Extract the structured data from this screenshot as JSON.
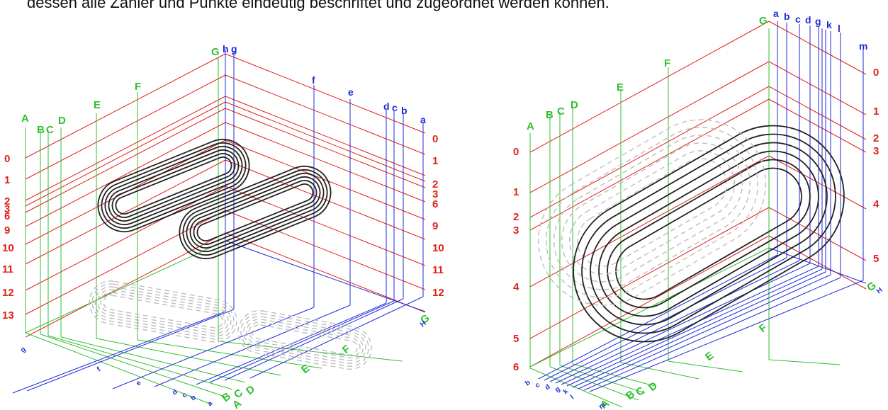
{
  "caption": "dessen alle Zahler und Punkte eindeutig beschriftet und zugeordnet werden können.",
  "colors": {
    "red": "#e0201b",
    "green": "#2fbf2f",
    "blue": "#1f2bd6",
    "coil": "#222222",
    "hidden": "#bdbdbd"
  },
  "left_diagram": {
    "red_labels": [
      "0",
      "1",
      "2",
      "3",
      "6",
      "9",
      "10",
      "11",
      "12",
      "13"
    ],
    "red_labels_right": [
      "0",
      "1",
      "2",
      "3",
      "6",
      "9",
      "10",
      "11",
      "12"
    ],
    "green_labels": [
      "A",
      "B",
      "C",
      "D",
      "E",
      "F",
      "G"
    ],
    "green_labels_bottom": [
      "A",
      "B",
      "C",
      "D",
      "E",
      "F",
      "G"
    ],
    "blue_labels": [
      "h",
      "g",
      "f",
      "e",
      "d",
      "c",
      "b",
      "a"
    ],
    "blue_labels_bottom": [
      "g",
      "f",
      "e",
      "d",
      "c",
      "b",
      "a",
      "H"
    ]
  },
  "right_diagram": {
    "red_labels": [
      "0",
      "1",
      "2",
      "3",
      "4",
      "5",
      "6"
    ],
    "red_labels_right": [
      "0",
      "1",
      "2",
      "3",
      "4",
      "5"
    ],
    "green_labels": [
      "A",
      "B",
      "C",
      "D",
      "E",
      "F",
      "G"
    ],
    "green_labels_bottom": [
      "A",
      "B",
      "C",
      "D",
      "E",
      "F",
      "G"
    ],
    "blue_labels": [
      "a",
      "b",
      "c",
      "d",
      "g",
      "k",
      "l",
      "m"
    ],
    "blue_labels_bottom": [
      "b",
      "c",
      "d",
      "g",
      "k",
      "l",
      "m",
      "H"
    ]
  }
}
